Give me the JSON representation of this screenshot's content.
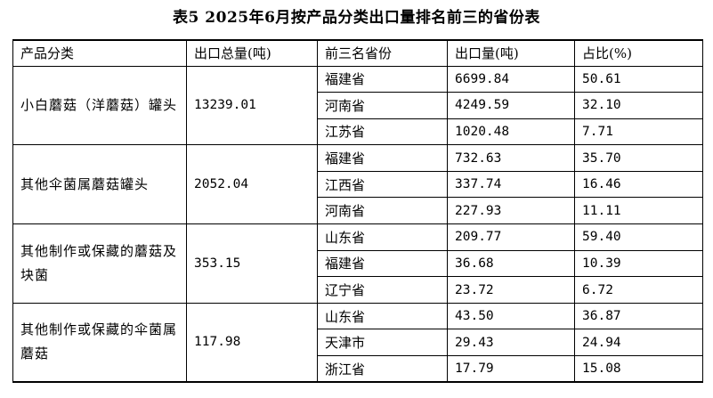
{
  "title": "表5 2025年6月按产品分类出口量排名前三的省份表",
  "headers": [
    "产品分类",
    "出口总量(吨)",
    "前三名省份",
    "出口量(吨)",
    "占比(%)"
  ],
  "groups": [
    {
      "category": "小白蘑菇（洋蘑菇）罐头",
      "total": "13239.01",
      "rows": [
        {
          "province": "福建省",
          "volume": "6699.84",
          "share": "50.61"
        },
        {
          "province": "河南省",
          "volume": "4249.59",
          "share": "32.10"
        },
        {
          "province": "江苏省",
          "volume": "1020.48",
          "share": "7.71"
        }
      ]
    },
    {
      "category": "其他伞菌属蘑菇罐头",
      "total": "2052.04",
      "rows": [
        {
          "province": "福建省",
          "volume": "732.63",
          "share": "35.70"
        },
        {
          "province": "江西省",
          "volume": "337.74",
          "share": "16.46"
        },
        {
          "province": "河南省",
          "volume": "227.93",
          "share": "11.11"
        }
      ]
    },
    {
      "category": "其他制作或保藏的蘑菇及块菌",
      "total": "353.15",
      "rows": [
        {
          "province": "山东省",
          "volume": "209.77",
          "share": "59.40"
        },
        {
          "province": "福建省",
          "volume": "36.68",
          "share": "10.39"
        },
        {
          "province": "辽宁省",
          "volume": "23.72",
          "share": "6.72"
        }
      ]
    },
    {
      "category": "其他制作或保藏的伞菌属蘑菇",
      "total": "117.98",
      "rows": [
        {
          "province": "山东省",
          "volume": "43.50",
          "share": "36.87"
        },
        {
          "province": "天津市",
          "volume": "29.43",
          "share": "24.94"
        },
        {
          "province": "浙江省",
          "volume": "17.79",
          "share": "15.08"
        }
      ]
    }
  ]
}
